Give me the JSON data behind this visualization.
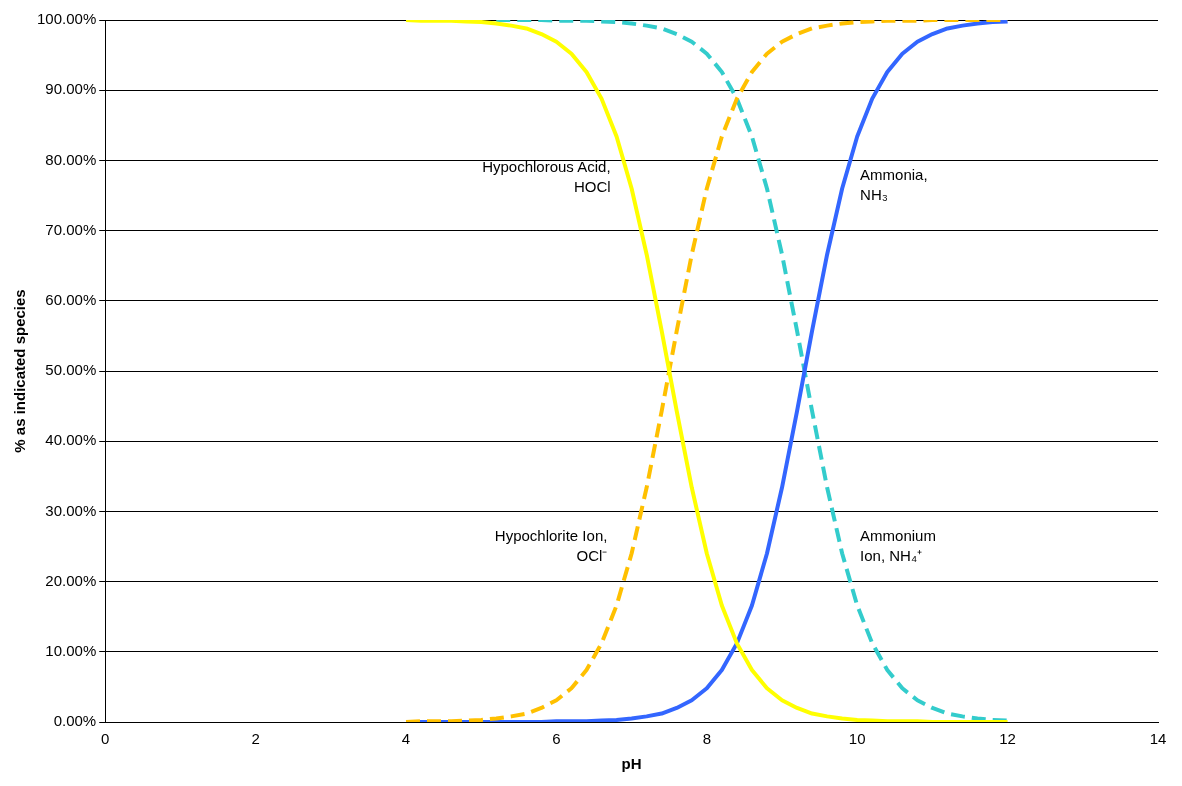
{
  "chart_data": {
    "type": "line",
    "xlabel": "pH",
    "ylabel": "% as indicated species",
    "xlim": [
      0,
      14
    ],
    "xticks": [
      0,
      2,
      4,
      6,
      8,
      10,
      12,
      14
    ],
    "ylim": [
      0,
      100
    ],
    "yticks": [
      {
        "value": 0,
        "label": "0.00%"
      },
      {
        "value": 10,
        "label": "10.00%"
      },
      {
        "value": 20,
        "label": "20.00%"
      },
      {
        "value": 30,
        "label": "30.00%"
      },
      {
        "value": 40,
        "label": "40.00%"
      },
      {
        "value": 50,
        "label": "50.00%"
      },
      {
        "value": 60,
        "label": "60.00%"
      },
      {
        "value": 70,
        "label": "70.00%"
      },
      {
        "value": 80,
        "label": "80.00%"
      },
      {
        "value": 90,
        "label": "90.00%"
      },
      {
        "value": 100,
        "label": "100.00%"
      }
    ],
    "grid": "y",
    "legend": false,
    "marker": "none",
    "x": [
      4.0,
      4.2,
      4.4,
      4.6,
      4.8,
      5.0,
      5.2,
      5.4,
      5.6,
      5.8,
      6.0,
      6.2,
      6.4,
      6.6,
      6.8,
      7.0,
      7.2,
      7.4,
      7.6,
      7.8,
      8.0,
      8.2,
      8.4,
      8.6,
      8.8,
      9.0,
      9.2,
      9.4,
      9.6,
      9.8,
      10.0,
      10.2,
      10.4,
      10.6,
      10.8,
      11.0,
      11.2,
      11.4,
      11.6,
      11.8,
      12.0
    ],
    "series": [
      {
        "color": "#ffff00",
        "line_style": "solid",
        "values": [
          100.0,
          99.9,
          99.9,
          99.9,
          99.8,
          99.7,
          99.5,
          99.2,
          98.8,
          98.0,
          96.9,
          95.2,
          92.6,
          88.8,
          83.4,
          76.0,
          66.6,
          55.7,
          44.3,
          33.4,
          24.0,
          16.6,
          11.2,
          7.4,
          4.8,
          3.1,
          2.0,
          1.2,
          0.8,
          0.5,
          0.3,
          0.2,
          0.1,
          0.1,
          0.1,
          0.0,
          0.0,
          0.0,
          0.0,
          0.0,
          0.0
        ]
      },
      {
        "color": "#ffc000",
        "line_style": "dashed",
        "values": [
          0.0,
          0.1,
          0.1,
          0.1,
          0.2,
          0.3,
          0.5,
          0.8,
          1.2,
          2.0,
          3.1,
          4.8,
          7.4,
          11.2,
          16.6,
          24.0,
          33.4,
          44.3,
          55.7,
          66.6,
          76.0,
          83.4,
          88.8,
          92.6,
          95.2,
          96.9,
          98.0,
          98.8,
          99.2,
          99.5,
          99.7,
          99.8,
          99.9,
          99.9,
          99.9,
          100.0,
          100.0,
          100.0,
          100.0,
          100.0,
          100.0
        ]
      },
      {
        "color": "#3366ff",
        "line_style": "solid",
        "values": [
          0.0,
          0.0,
          0.0,
          0.0,
          0.0,
          0.0,
          0.0,
          0.0,
          0.0,
          0.0,
          0.1,
          0.1,
          0.1,
          0.2,
          0.3,
          0.5,
          0.8,
          1.2,
          2.0,
          3.1,
          4.8,
          7.4,
          11.2,
          16.6,
          24.0,
          33.4,
          44.3,
          55.7,
          66.6,
          76.0,
          83.4,
          88.8,
          92.6,
          95.2,
          96.9,
          98.0,
          98.8,
          99.2,
          99.5,
          99.7,
          99.8
        ]
      },
      {
        "color": "#33cccc",
        "line_style": "dashed",
        "values": [
          null,
          null,
          null,
          null,
          null,
          null,
          100.0,
          100.0,
          100.0,
          100.0,
          99.9,
          99.9,
          99.9,
          99.8,
          99.7,
          99.5,
          99.2,
          98.8,
          98.0,
          96.9,
          95.2,
          92.6,
          88.8,
          83.4,
          76.0,
          66.6,
          55.7,
          44.3,
          33.4,
          24.0,
          16.6,
          11.2,
          7.4,
          4.8,
          3.1,
          2.0,
          1.2,
          0.8,
          0.5,
          0.3,
          0.2
        ]
      }
    ],
    "annotations": [
      "Hypochlorous Acid,\nHOCl",
      "Hypochlorite Ion,\nOCl⁻",
      "Ammonia,\nNH₃",
      "Ammonium\nIon, NH₄⁺"
    ]
  }
}
